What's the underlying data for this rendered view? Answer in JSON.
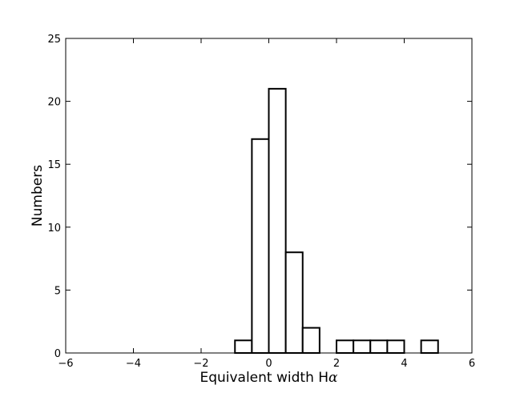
{
  "chart_data": {
    "type": "bar",
    "xlabel": "Equivalent width H",
    "xlabel_symbol": "α",
    "ylabel": "Numbers",
    "xlim": [
      -6,
      6
    ],
    "ylim": [
      0,
      25
    ],
    "x_ticks": [
      -6,
      -4,
      -2,
      0,
      2,
      4,
      6
    ],
    "x_tick_labels": [
      "−6",
      "−4",
      "−2",
      "0",
      "2",
      "4",
      "6"
    ],
    "y_ticks": [
      0,
      5,
      10,
      15,
      20,
      25
    ],
    "y_tick_labels": [
      "0",
      "5",
      "10",
      "15",
      "20",
      "25"
    ],
    "bin_width": 0.5,
    "bins": [
      {
        "x0": -5.0,
        "count": 0
      },
      {
        "x0": -4.5,
        "count": 0
      },
      {
        "x0": -4.0,
        "count": 0
      },
      {
        "x0": -3.5,
        "count": 0
      },
      {
        "x0": -3.0,
        "count": 0
      },
      {
        "x0": -2.5,
        "count": 0
      },
      {
        "x0": -2.0,
        "count": 0
      },
      {
        "x0": -1.5,
        "count": 0
      },
      {
        "x0": -1.0,
        "count": 1
      },
      {
        "x0": -0.5,
        "count": 17
      },
      {
        "x0": 0.0,
        "count": 21
      },
      {
        "x0": 0.5,
        "count": 8
      },
      {
        "x0": 1.0,
        "count": 2
      },
      {
        "x0": 1.5,
        "count": 0
      },
      {
        "x0": 2.0,
        "count": 1
      },
      {
        "x0": 2.5,
        "count": 1
      },
      {
        "x0": 3.0,
        "count": 1
      },
      {
        "x0": 3.5,
        "count": 1
      },
      {
        "x0": 4.0,
        "count": 0
      },
      {
        "x0": 4.5,
        "count": 1
      }
    ],
    "bar_fill": "#ffffff",
    "bar_edge": "#000000",
    "grid": false,
    "legend": "none"
  }
}
